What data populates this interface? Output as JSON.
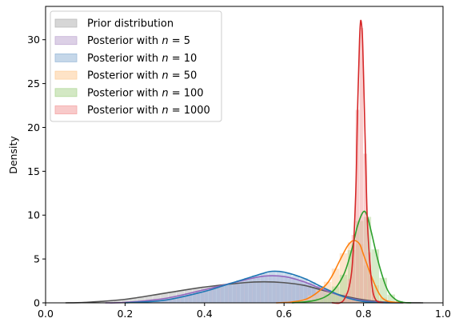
{
  "chart_data": {
    "type": "area",
    "title": "",
    "xlabel": "",
    "ylabel": "Density",
    "xlim": [
      0.0,
      1.0
    ],
    "ylim": [
      0,
      33.8
    ],
    "x_ticks": [
      "0.0",
      "0.2",
      "0.4",
      "0.6",
      "0.8",
      "1.0"
    ],
    "y_ticks": [
      "0",
      "5",
      "10",
      "15",
      "20",
      "25",
      "30"
    ],
    "grid": false,
    "legend_position": "upper-left",
    "series": [
      {
        "name": "Prior distribution",
        "legend_prefix": "Prior distribution",
        "legend_n": "",
        "color": "#555555",
        "hist_color": "#bbbbbb",
        "kde": [
          [
            0.05,
            0.0
          ],
          [
            0.1,
            0.05
          ],
          [
            0.2,
            0.4
          ],
          [
            0.3,
            1.1
          ],
          [
            0.4,
            1.8
          ],
          [
            0.5,
            2.3
          ],
          [
            0.55,
            2.4
          ],
          [
            0.6,
            2.3
          ],
          [
            0.65,
            2.0
          ],
          [
            0.7,
            1.4
          ],
          [
            0.75,
            0.8
          ],
          [
            0.8,
            0.35
          ],
          [
            0.85,
            0.1
          ],
          [
            0.9,
            0.02
          ],
          [
            0.95,
            0.0
          ]
        ]
      },
      {
        "name": "Posterior with n = 5",
        "legend_prefix": "Posterior with ",
        "legend_n": "n = 5",
        "color": "#9467bd",
        "hist_color": "#c5b0d5",
        "kde": [
          [
            0.15,
            0.0
          ],
          [
            0.2,
            0.05
          ],
          [
            0.3,
            0.5
          ],
          [
            0.4,
            1.5
          ],
          [
            0.5,
            2.6
          ],
          [
            0.55,
            3.05
          ],
          [
            0.6,
            3.0
          ],
          [
            0.65,
            2.4
          ],
          [
            0.7,
            1.5
          ],
          [
            0.75,
            0.7
          ],
          [
            0.8,
            0.25
          ],
          [
            0.85,
            0.05
          ],
          [
            0.9,
            0.0
          ]
        ]
      },
      {
        "name": "Posterior with n = 10",
        "legend_prefix": "Posterior with ",
        "legend_n": "n = 10",
        "color": "#1f77b4",
        "hist_color": "#9ebcda",
        "kde": [
          [
            0.2,
            0.0
          ],
          [
            0.3,
            0.3
          ],
          [
            0.4,
            1.3
          ],
          [
            0.45,
            2.0
          ],
          [
            0.5,
            2.7
          ],
          [
            0.55,
            3.4
          ],
          [
            0.57,
            3.6
          ],
          [
            0.6,
            3.5
          ],
          [
            0.65,
            2.8
          ],
          [
            0.7,
            1.7
          ],
          [
            0.75,
            0.7
          ],
          [
            0.8,
            0.15
          ],
          [
            0.85,
            0.02
          ],
          [
            0.9,
            0.0
          ]
        ]
      },
      {
        "name": "Posterior with n = 50",
        "legend_prefix": "Posterior with ",
        "legend_n": "n = 50",
        "color": "#ff7f0e",
        "hist_color": "#fdd0a2",
        "kde": [
          [
            0.58,
            0.0
          ],
          [
            0.62,
            0.1
          ],
          [
            0.66,
            0.5
          ],
          [
            0.7,
            1.8
          ],
          [
            0.72,
            3.0
          ],
          [
            0.74,
            4.8
          ],
          [
            0.76,
            6.5
          ],
          [
            0.775,
            7.1
          ],
          [
            0.79,
            6.7
          ],
          [
            0.8,
            5.5
          ],
          [
            0.82,
            3.0
          ],
          [
            0.84,
            1.0
          ],
          [
            0.86,
            0.2
          ],
          [
            0.9,
            0.0
          ]
        ]
      },
      {
        "name": "Posterior with n = 100",
        "legend_prefix": "Posterior with ",
        "legend_n": "n = 100",
        "color": "#2ca02c",
        "hist_color": "#b5d99c",
        "kde": [
          [
            0.62,
            0.0
          ],
          [
            0.68,
            0.3
          ],
          [
            0.72,
            1.2
          ],
          [
            0.75,
            3.2
          ],
          [
            0.77,
            6.0
          ],
          [
            0.785,
            8.8
          ],
          [
            0.8,
            10.4
          ],
          [
            0.81,
            9.8
          ],
          [
            0.82,
            8.0
          ],
          [
            0.84,
            4.2
          ],
          [
            0.86,
            1.5
          ],
          [
            0.88,
            0.4
          ],
          [
            0.9,
            0.05
          ],
          [
            0.92,
            0.0
          ]
        ]
      },
      {
        "name": "Posterior with n = 1000",
        "legend_prefix": "Posterior with ",
        "legend_n": "n = 1000",
        "color": "#d62728",
        "hist_color": "#f4a6a6",
        "kde": [
          [
            0.72,
            0.0
          ],
          [
            0.75,
            0.3
          ],
          [
            0.77,
            3.5
          ],
          [
            0.78,
            12.0
          ],
          [
            0.785,
            22.0
          ],
          [
            0.79,
            30.0
          ],
          [
            0.793,
            32.2
          ],
          [
            0.797,
            30.5
          ],
          [
            0.8,
            26.0
          ],
          [
            0.805,
            17.0
          ],
          [
            0.81,
            9.0
          ],
          [
            0.82,
            2.5
          ],
          [
            0.83,
            0.4
          ],
          [
            0.85,
            0.0
          ]
        ]
      }
    ]
  }
}
